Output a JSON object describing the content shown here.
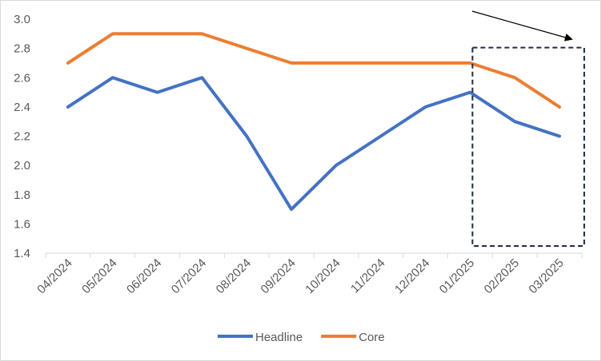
{
  "chart_data": {
    "type": "line",
    "title": "",
    "xlabel": "",
    "ylabel": "",
    "categories": [
      "04/2024",
      "05/2024",
      "06/2024",
      "07/2024",
      "08/2024",
      "09/2024",
      "10/2024",
      "11/2024",
      "12/2024",
      "01/2025",
      "02/2025",
      "03/2025"
    ],
    "ylim": [
      1.4,
      3.0
    ],
    "yticks": [
      "1.4",
      "1.6",
      "1.8",
      "2.0",
      "2.2",
      "2.4",
      "2.6",
      "2.8",
      "3.0"
    ],
    "grid": false,
    "legend_position": "bottom",
    "series": [
      {
        "name": "Headline",
        "color": "#4472c4",
        "values": [
          2.4,
          2.6,
          2.5,
          2.6,
          2.2,
          1.7,
          2.0,
          2.2,
          2.4,
          2.5,
          2.3,
          2.2
        ]
      },
      {
        "name": "Core",
        "color": "#ed7d31",
        "values": [
          2.7,
          2.9,
          2.9,
          2.9,
          2.8,
          2.7,
          2.7,
          2.7,
          2.7,
          2.7,
          2.6,
          2.4
        ]
      }
    ],
    "annotations": [
      {
        "type": "dashed-box",
        "from_category": "01/2025",
        "to_category": "03/2025",
        "y_top": 2.8,
        "y_bottom": 1.4
      },
      {
        "type": "arrow",
        "direction": "down-right"
      }
    ]
  }
}
